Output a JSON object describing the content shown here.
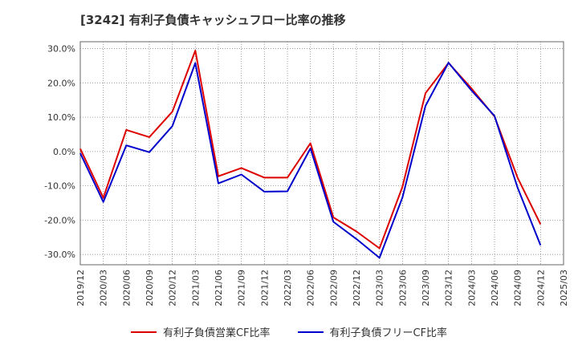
{
  "title": "[3242]  有利子負債キャッシュフロー比率の推移",
  "chart_data": {
    "type": "line",
    "x": [
      "2019/12",
      "2020/03",
      "2020/06",
      "2020/09",
      "2020/12",
      "2021/03",
      "2021/06",
      "2021/09",
      "2021/12",
      "2022/03",
      "2022/06",
      "2022/09",
      "2022/12",
      "2023/03",
      "2023/06",
      "2023/09",
      "2023/12",
      "2024/03",
      "2024/06",
      "2024/09",
      "2024/12",
      "2025/03"
    ],
    "y_ticks": [
      "30.0%",
      "20.0%",
      "10.0%",
      "0.0%",
      "-10.0%",
      "-20.0%",
      "-30.0%"
    ],
    "ylim": [
      -33,
      32
    ],
    "grid": true,
    "legend_position": "bottom",
    "series": [
      {
        "name": "有利子負債営業CF比率",
        "color": "#dd0000",
        "values": [
          0.8,
          -13.5,
          6.3,
          4.2,
          11.6,
          29.4,
          -7.2,
          -4.8,
          -7.6,
          -7.6,
          2.4,
          -19.2,
          -23.3,
          -28.2,
          -10.3,
          17.0,
          25.8,
          18.4,
          10.2,
          -7.6,
          -21.2,
          null
        ]
      },
      {
        "name": "有利子負債フリーCF比率",
        "color": "#0000cc",
        "values": [
          -0.5,
          -14.7,
          1.8,
          -0.2,
          7.4,
          25.8,
          -9.3,
          -6.7,
          -11.7,
          -11.6,
          0.9,
          -20.5,
          -25.5,
          -31.0,
          -13.4,
          13.3,
          25.9,
          17.8,
          10.4,
          -10.5,
          -27.3,
          null
        ]
      }
    ]
  }
}
